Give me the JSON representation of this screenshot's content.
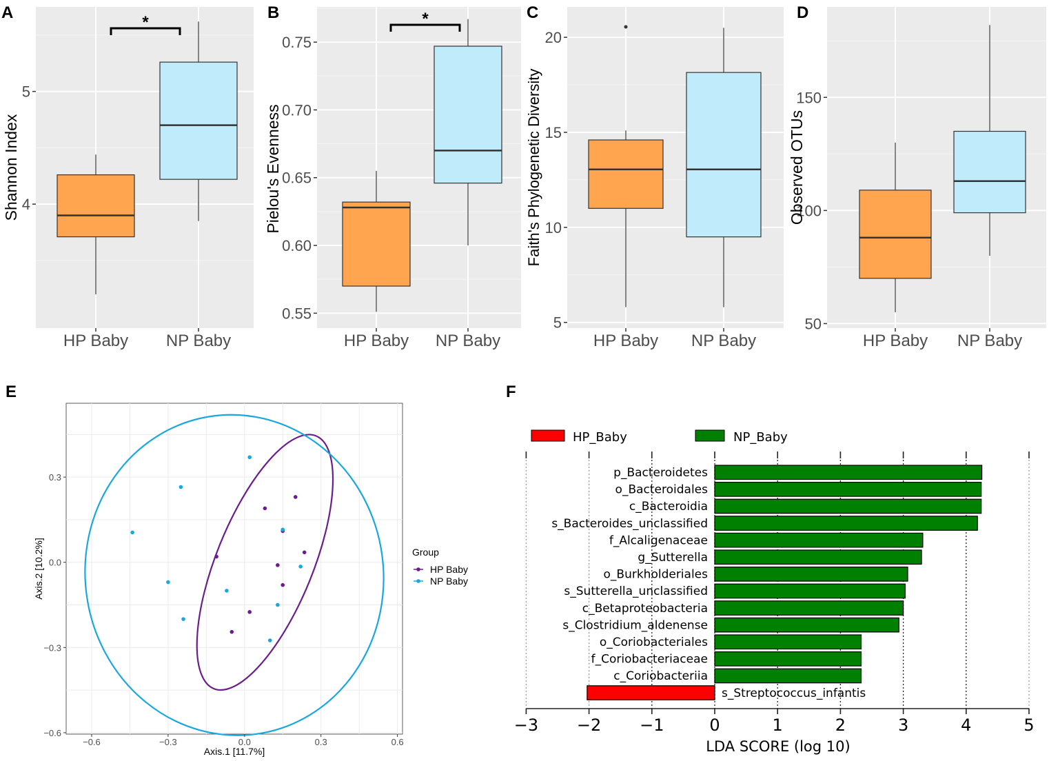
{
  "chart_data": [
    {
      "id": "A",
      "panel_label": "A",
      "type": "box",
      "ylabel": "Shannon Index",
      "categories": [
        "HP Baby",
        "NP Baby"
      ],
      "yticks": [
        {
          "v": 4,
          "label": "4"
        },
        {
          "v": 5,
          "label": "5"
        }
      ],
      "ylim": [
        2.9,
        5.75
      ],
      "boxes": [
        {
          "group": "HP Baby",
          "color": "#FFA550",
          "min": 3.2,
          "q1": 3.71,
          "median": 3.9,
          "q3": 4.26,
          "max": 4.44
        },
        {
          "group": "NP Baby",
          "color": "#BFEBFA",
          "min": 3.85,
          "q1": 4.22,
          "median": 4.7,
          "q3": 5.26,
          "max": 5.62
        }
      ],
      "outliers": [],
      "significance": "*"
    },
    {
      "id": "B",
      "panel_label": "B",
      "type": "box",
      "ylabel": "Pielou's Evenness",
      "categories": [
        "HP Baby",
        "NP Baby"
      ],
      "yticks": [
        {
          "v": 0.55,
          "label": "0.55"
        },
        {
          "v": 0.6,
          "label": "0.60"
        },
        {
          "v": 0.65,
          "label": "0.65"
        },
        {
          "v": 0.7,
          "label": "0.70"
        },
        {
          "v": 0.75,
          "label": "0.75"
        }
      ],
      "ylim": [
        0.539,
        0.776
      ],
      "boxes": [
        {
          "group": "HP Baby",
          "color": "#FFA550",
          "min": 0.551,
          "q1": 0.57,
          "median": 0.628,
          "q3": 0.632,
          "max": 0.655
        },
        {
          "group": "NP Baby",
          "color": "#BFEBFA",
          "min": 0.6,
          "q1": 0.646,
          "median": 0.67,
          "q3": 0.747,
          "max": 0.767
        }
      ],
      "outliers": [],
      "significance": "*"
    },
    {
      "id": "C",
      "panel_label": "C",
      "type": "box",
      "ylabel": "Faith's Phylogenetic Diversity",
      "categories": [
        "HP Baby",
        "NP Baby"
      ],
      "yticks": [
        {
          "v": 5,
          "label": "5"
        },
        {
          "v": 10,
          "label": "10"
        },
        {
          "v": 15,
          "label": "15"
        },
        {
          "v": 20,
          "label": "20"
        }
      ],
      "ylim": [
        4.7,
        21.6
      ],
      "boxes": [
        {
          "group": "HP Baby",
          "color": "#FFA550",
          "min": 5.8,
          "q1": 11.0,
          "median": 13.05,
          "q3": 14.6,
          "max": 15.1
        },
        {
          "group": "NP Baby",
          "color": "#BFEBFA",
          "min": 5.8,
          "q1": 9.5,
          "median": 13.05,
          "q3": 18.15,
          "max": 20.5
        }
      ],
      "outliers": [
        {
          "group": "HP Baby",
          "value": 20.55
        }
      ],
      "significance": ""
    },
    {
      "id": "D",
      "panel_label": "D",
      "type": "box",
      "ylabel": "Observed OTUs",
      "categories": [
        "HP Baby",
        "NP Baby"
      ],
      "yticks": [
        {
          "v": 50,
          "label": "50"
        },
        {
          "v": 100,
          "label": "100"
        },
        {
          "v": 150,
          "label": "150"
        }
      ],
      "ylim": [
        48,
        190
      ],
      "boxes": [
        {
          "group": "HP Baby",
          "color": "#FFA550",
          "min": 55,
          "q1": 70,
          "median": 88,
          "q3": 109,
          "max": 130
        },
        {
          "group": "NP Baby",
          "color": "#BFEBFA",
          "min": 80,
          "q1": 99,
          "median": 113,
          "q3": 135,
          "max": 182
        }
      ],
      "outliers": [],
      "significance": ""
    },
    {
      "id": "E",
      "panel_label": "E",
      "type": "scatter",
      "xlabel": "Axis.1  [11.7%]",
      "ylabel": "Axis.2  [10.2%]",
      "xlim": [
        -0.7,
        0.62
      ],
      "ylim": [
        -0.605,
        0.56
      ],
      "xticks": [
        {
          "v": -0.6,
          "label": "−0.6"
        },
        {
          "v": -0.3,
          "label": "−0.3"
        },
        {
          "v": 0.0,
          "label": "0.0"
        },
        {
          "v": 0.3,
          "label": "0.3"
        },
        {
          "v": 0.6,
          "label": "0.6"
        }
      ],
      "yticks": [
        {
          "v": -0.6,
          "label": "−0.6"
        },
        {
          "v": -0.3,
          "label": "−0.3"
        },
        {
          "v": 0.0,
          "label": "0.0"
        },
        {
          "v": 0.3,
          "label": "0.3"
        }
      ],
      "legend_title": "Group",
      "legend_position": "right",
      "series": [
        {
          "name": "HP Baby",
          "color": "#6A1E8E",
          "points": [
            [
              0.08,
              0.19
            ],
            [
              0.2,
              0.23
            ],
            [
              0.15,
              0.11
            ],
            [
              0.235,
              0.035
            ],
            [
              -0.11,
              0.02
            ],
            [
              0.13,
              -0.01
            ],
            [
              0.15,
              -0.08
            ],
            [
              0.02,
              -0.175
            ],
            [
              -0.05,
              -0.245
            ]
          ],
          "ellipse": {
            "cx": 0.08,
            "cy": 0.0,
            "rx": 0.19,
            "ry": 0.48,
            "rotate_deg": 22
          }
        },
        {
          "name": "NP Baby",
          "color": "#1AA7E0",
          "points": [
            [
              0.02,
              0.37
            ],
            [
              -0.25,
              0.265
            ],
            [
              -0.44,
              0.105
            ],
            [
              0.15,
              0.115
            ],
            [
              0.22,
              -0.015
            ],
            [
              -0.3,
              -0.07
            ],
            [
              -0.07,
              -0.1
            ],
            [
              0.13,
              -0.15
            ],
            [
              -0.24,
              -0.2
            ],
            [
              0.1,
              -0.275
            ]
          ],
          "ellipse": {
            "cx": -0.04,
            "cy": -0.045,
            "rx": 0.585,
            "ry": 0.565,
            "rotate_deg": -8
          }
        }
      ]
    },
    {
      "id": "F",
      "panel_label": "F",
      "type": "bar",
      "orientation": "horizontal",
      "xlabel": "LDA SCORE (log 10)",
      "xlim": [
        -3,
        5
      ],
      "xticks": [
        {
          "v": -3,
          "label": "−3"
        },
        {
          "v": -2,
          "label": "−2"
        },
        {
          "v": -1,
          "label": "−1"
        },
        {
          "v": 0,
          "label": "0"
        },
        {
          "v": 1,
          "label": "1"
        },
        {
          "v": 2,
          "label": "2"
        },
        {
          "v": 3,
          "label": "3"
        },
        {
          "v": 4,
          "label": "4"
        },
        {
          "v": 5,
          "label": "5"
        }
      ],
      "legend": [
        {
          "name": "HP_Baby",
          "color": "#FF0000"
        },
        {
          "name": "NP_Baby",
          "color": "#008000"
        }
      ],
      "categories": [
        "p_Bacteroidetes",
        "o_Bacteroidales",
        "c_Bacteroidia",
        "s_Bacteroides_unclassified",
        "f_Alcaligenaceae",
        "g_Sutterella",
        "o_Burkholderiales",
        "s_Sutterella_unclassified",
        "c_Betaproteobacteria",
        "s_Clostridium_aldenense",
        "o_Coriobacteriales",
        "f_Coriobacteriaceae",
        "c_Coriobacteriia",
        "s_Streptococcus_infantis"
      ],
      "values": [
        4.25,
        4.24,
        4.24,
        4.18,
        3.31,
        3.29,
        3.07,
        3.03,
        3.0,
        2.93,
        2.33,
        2.33,
        2.33,
        -2.03
      ],
      "groups": [
        "NP_Baby",
        "NP_Baby",
        "NP_Baby",
        "NP_Baby",
        "NP_Baby",
        "NP_Baby",
        "NP_Baby",
        "NP_Baby",
        "NP_Baby",
        "NP_Baby",
        "NP_Baby",
        "NP_Baby",
        "NP_Baby",
        "HP_Baby"
      ]
    }
  ]
}
